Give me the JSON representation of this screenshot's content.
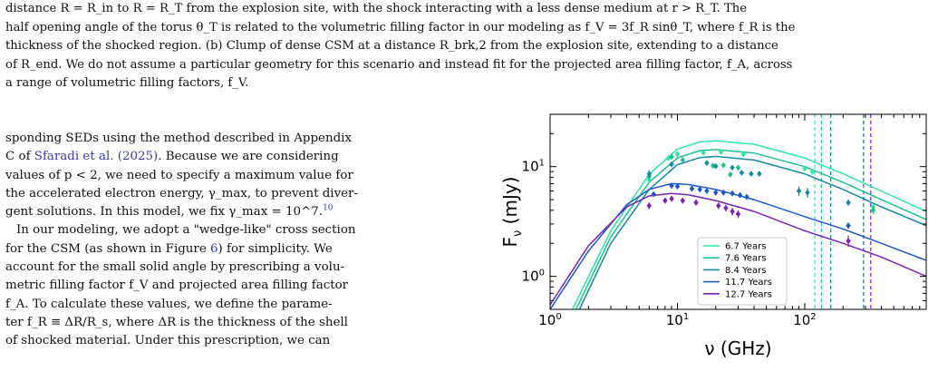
{
  "caption": {
    "line1": "distance R = R_in to R = R_T from the explosion site, with the shock interacting with a less dense medium at r > R_T. The",
    "line2": "half opening angle of the torus θ_T is related to the volumetric filling factor in our modeling as f_V = 3f_R sinθ_T, where f_R is the",
    "line3": "thickness of the shocked region. (b) Clump of dense CSM at a distance R_brk,2 from the explosion site, extending to a distance",
    "line4": "of R_end. We do not assume a particular geometry for this scenario and instead fit for the projected area filling factor, f_A, across",
    "line5": "a range of volumetric filling factors, f_V."
  },
  "body": {
    "p1_a": "sponding SEDs using the method described in Appendix",
    "p1_b": "C of",
    "p1_cite": "Sfaradi et al. (2025)",
    "p1_c": ". Because we are considering",
    "p1_d": "values of p < 2, we need to specify a maximum value for",
    "p1_e": "the accelerated electron energy, γ_max, to prevent diver-",
    "p1_f": "gent solutions. In this model, we fix γ_max = 10^7.",
    "p1_fn": "10",
    "p2_a": "In our modeling, we adopt a \"wedge-like\" cross section",
    "p2_b": "for the CSM (as shown in Figure",
    "p2_fig": "6",
    "p2_c": ") for simplicity. We",
    "p2_d": "account for the small solid angle by prescribing a volu-",
    "p2_e": "metric filling factor f_V and projected area filling factor",
    "p2_f": "f_A. To calculate these values, we define the parame-",
    "p2_g": "ter f_R ≡ ΔR/R_s, where ΔR is the thickness of the shell",
    "p2_h": "of shocked material. Under this prescription, we can"
  },
  "chart_data": {
    "type": "scatter",
    "xlabel": "ν (GHz)",
    "ylabel": "F_ν (mJy)",
    "xscale": "log",
    "yscale": "log",
    "xlim": [
      1,
      900
    ],
    "ylim": [
      0.5,
      30
    ],
    "xticks": [
      "10^0",
      "10^1",
      "10^2"
    ],
    "yticks": [
      "10^0",
      "10^1"
    ],
    "legend_position": "lower-center",
    "series": [
      {
        "name": "6.7 Years",
        "color": "#2ee6a6",
        "points": [
          [
            6,
            7.6
          ],
          [
            8.5,
            12
          ],
          [
            10,
            13
          ],
          [
            16,
            13.4
          ],
          [
            22,
            13.6
          ],
          [
            33,
            13
          ],
          [
            100,
            9.6
          ],
          [
            115,
            9
          ],
          [
            345,
            4.3
          ]
        ],
        "errors": [
          0.5,
          0.5,
          0.5,
          0.5,
          0.5,
          0.5,
          0.4,
          0.4,
          0.3
        ],
        "model": [
          [
            1.5,
            0.5
          ],
          [
            3,
            2.6
          ],
          [
            6,
            8.5
          ],
          [
            10,
            14.5
          ],
          [
            15,
            16.8
          ],
          [
            20,
            17.2
          ],
          [
            40,
            16
          ],
          [
            100,
            12
          ],
          [
            200,
            8.6
          ],
          [
            400,
            6
          ],
          [
            900,
            3.9
          ]
        ],
        "vline": 120
      },
      {
        "name": "7.6 Years",
        "color": "#1ec28e",
        "points": [
          [
            6,
            8.2
          ],
          [
            9,
            12.3
          ],
          [
            11,
            11.5
          ],
          [
            19,
            10.2
          ],
          [
            23,
            10.3
          ],
          [
            26,
            8.5
          ],
          [
            30,
            9.8
          ],
          [
            345,
            4
          ]
        ],
        "errors": [
          0.6,
          0.4,
          0.4,
          0.4,
          0.4,
          0.4,
          0.4,
          0.3
        ],
        "model": [
          [
            1.6,
            0.5
          ],
          [
            3,
            2.3
          ],
          [
            6,
            7.2
          ],
          [
            10,
            12
          ],
          [
            15,
            14
          ],
          [
            20,
            14.3
          ],
          [
            40,
            13.3
          ],
          [
            100,
            10
          ],
          [
            200,
            7.2
          ],
          [
            400,
            5
          ],
          [
            900,
            3.3
          ]
        ],
        "vline": 135
      },
      {
        "name": "8.4 Years",
        "color": "#168a9e",
        "points": [
          [
            6,
            8.6
          ],
          [
            9,
            10.5
          ],
          [
            17,
            10.8
          ],
          [
            20,
            10.1
          ],
          [
            27,
            9.8
          ],
          [
            32,
            8.8
          ],
          [
            38,
            8.6
          ],
          [
            44,
            8.6
          ],
          [
            90,
            6
          ],
          [
            105,
            5.8
          ],
          [
            220,
            4.7
          ]
        ],
        "errors": [
          0.7,
          0.5,
          0.4,
          0.4,
          0.4,
          0.4,
          0.4,
          0.4,
          0.6,
          0.6,
          0.3
        ],
        "model": [
          [
            1.7,
            0.5
          ],
          [
            3,
            2
          ],
          [
            6,
            6.2
          ],
          [
            10,
            10.4
          ],
          [
            15,
            12.1
          ],
          [
            20,
            12.4
          ],
          [
            40,
            11.5
          ],
          [
            100,
            8.6
          ],
          [
            200,
            6.2
          ],
          [
            400,
            4.3
          ],
          [
            900,
            2.9
          ]
        ],
        "vline": 160
      },
      {
        "name": "11.7 Years",
        "color": "#1f57c8",
        "points": [
          [
            6.5,
            5.6
          ],
          [
            9,
            6.7
          ],
          [
            10,
            6.6
          ],
          [
            13,
            6.3
          ],
          [
            15,
            6.2
          ],
          [
            17,
            6
          ],
          [
            20,
            5.8
          ],
          [
            23,
            5.8
          ],
          [
            27,
            5.7
          ],
          [
            31,
            5.5
          ],
          [
            35,
            5.3
          ],
          [
            220,
            2.9
          ]
        ],
        "errors": [
          0.3,
          0.3,
          0.3,
          0.3,
          0.3,
          0.3,
          0.3,
          0.3,
          0.3,
          0.3,
          0.3,
          0.2
        ],
        "model": [
          [
            1,
            0.5
          ],
          [
            2,
            1.7
          ],
          [
            4,
            4.5
          ],
          [
            6,
            6.2
          ],
          [
            9,
            7
          ],
          [
            12,
            6.9
          ],
          [
            20,
            6.2
          ],
          [
            40,
            5
          ],
          [
            100,
            3.5
          ],
          [
            200,
            2.7
          ],
          [
            400,
            2
          ],
          [
            900,
            1.4
          ]
        ],
        "vline": 290
      },
      {
        "name": "12.7 Years",
        "color": "#7722b8",
        "points": [
          [
            6,
            4.4
          ],
          [
            8,
            4.9
          ],
          [
            9,
            5.1
          ],
          [
            11,
            4.9
          ],
          [
            14,
            4.7
          ],
          [
            21,
            4.4
          ],
          [
            24,
            4.2
          ],
          [
            27,
            3.9
          ],
          [
            30,
            3.7
          ],
          [
            220,
            2.1
          ]
        ],
        "errors": [
          0.3,
          0.3,
          0.3,
          0.3,
          0.3,
          0.3,
          0.3,
          0.3,
          0.3,
          0.25
        ],
        "model": [
          [
            1,
            0.55
          ],
          [
            2,
            1.9
          ],
          [
            4,
            4.3
          ],
          [
            6,
            5.4
          ],
          [
            9,
            5.7
          ],
          [
            12,
            5.55
          ],
          [
            20,
            4.9
          ],
          [
            40,
            3.9
          ],
          [
            100,
            2.6
          ],
          [
            200,
            2
          ],
          [
            400,
            1.5
          ],
          [
            900,
            1
          ]
        ],
        "vline": 330
      }
    ]
  }
}
